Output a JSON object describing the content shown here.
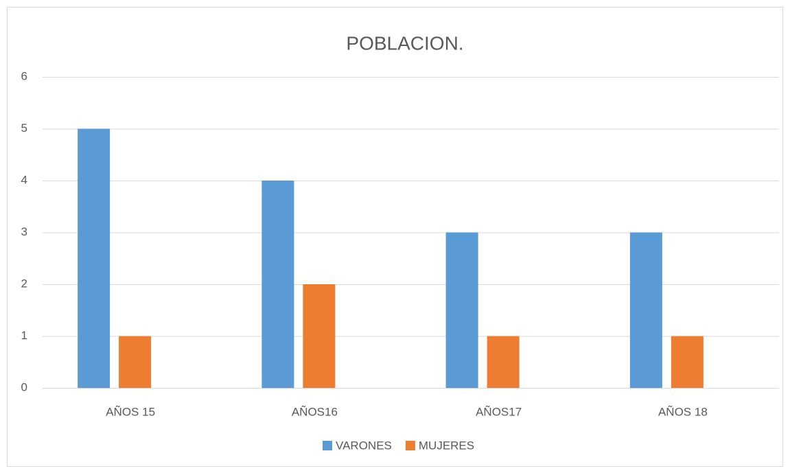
{
  "chart_data": {
    "type": "bar",
    "title": "POBLACION.",
    "categories": [
      "AÑOS 15",
      "AÑOS16",
      "AÑOS17",
      "AÑOS 18"
    ],
    "series": [
      {
        "name": "VARONES",
        "color": "#5b9bd5",
        "values": [
          5,
          4,
          3,
          3
        ]
      },
      {
        "name": "MUJERES",
        "color": "#ed7d31",
        "values": [
          1,
          2,
          1,
          1
        ]
      }
    ],
    "ylim": [
      0,
      6
    ],
    "yticks": [
      0,
      1,
      2,
      3,
      4,
      5,
      6
    ],
    "grid": true,
    "legend": "bottom"
  }
}
